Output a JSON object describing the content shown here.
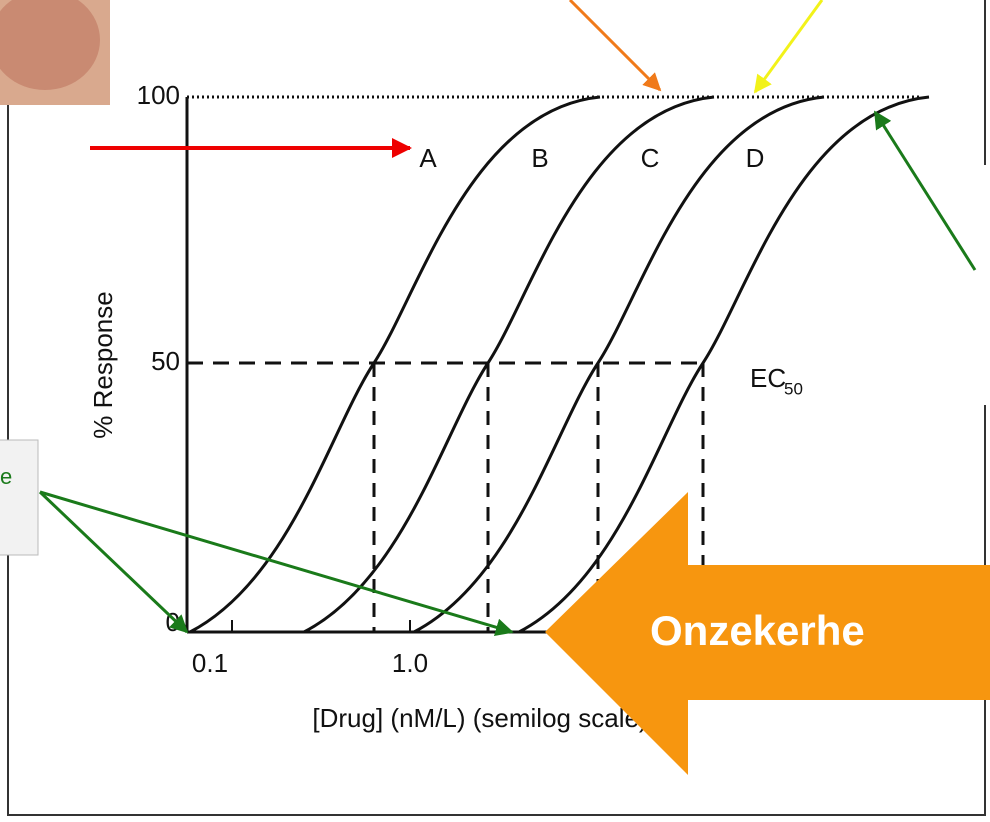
{
  "chart": {
    "y_axis_label": "% Response",
    "x_axis_label": "[Drug] (nM/L) (semilog scale)",
    "y_ticks": [
      "100",
      "50",
      "0"
    ],
    "x_ticks": [
      "0.1",
      "1.0"
    ],
    "curve_labels": [
      "A",
      "B",
      "C",
      "D"
    ],
    "ec50_label": "EC",
    "ec50_subscript": "50"
  },
  "annotations": {
    "banner": "Onzekerhe",
    "left_box": "e"
  }
}
